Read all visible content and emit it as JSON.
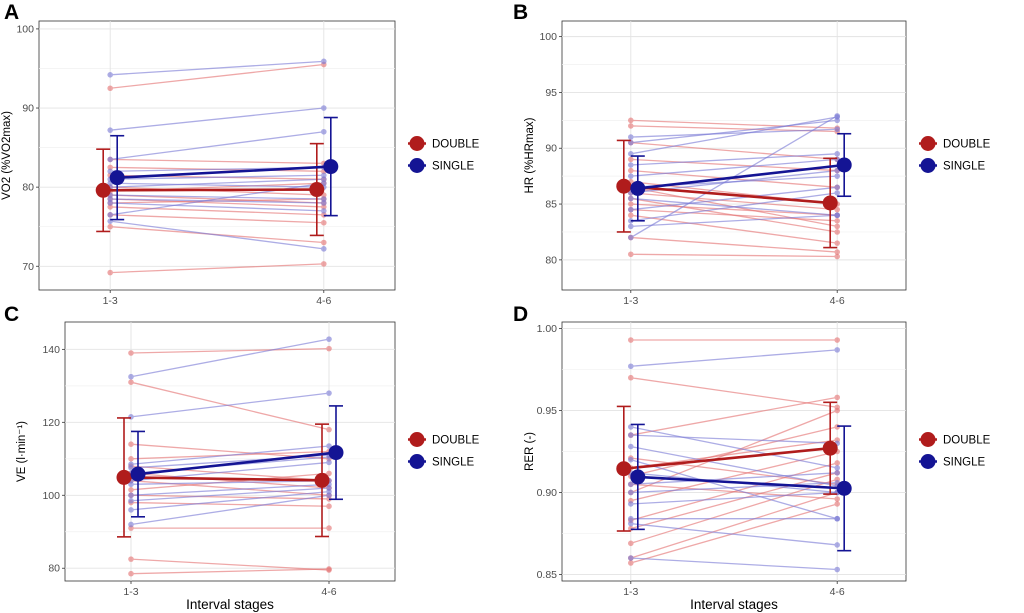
{
  "colors": {
    "DOUBLE": "#b01c1c",
    "SINGLE": "#141494",
    "DOUBLE_light": "#e57373",
    "SINGLE_light": "#7b7bd6"
  },
  "chart_data": [
    {
      "type": "line",
      "panel": "A",
      "ylabel": "VO2 (%VO2max)",
      "xlabel": "",
      "categories": [
        "1-3",
        "4-6"
      ],
      "ylim": [
        67,
        101
      ],
      "yticks": [
        70,
        80,
        90,
        100
      ],
      "legend": [
        "DOUBLE",
        "SINGLE"
      ],
      "means": [
        {
          "name": "DOUBLE",
          "values": [
            79.6,
            79.7
          ],
          "err": [
            5.2,
            5.8
          ]
        },
        {
          "name": "SINGLE",
          "values": [
            81.2,
            82.6
          ],
          "err": [
            5.3,
            6.2
          ]
        }
      ],
      "individuals": [
        {
          "name": "DOUBLE",
          "pairs": [
            [
              92.5,
              95.5
            ],
            [
              83.5,
              83.0
            ],
            [
              82.5,
              82.0
            ],
            [
              81.5,
              81.0
            ],
            [
              80.0,
              79.0
            ],
            [
              79.5,
              80.5
            ],
            [
              79.0,
              78.0
            ],
            [
              78.5,
              77.5
            ],
            [
              78.0,
              78.5
            ],
            [
              77.5,
              76.5
            ],
            [
              76.5,
              75.5
            ],
            [
              75.0,
              73.0
            ],
            [
              69.2,
              70.3
            ]
          ]
        },
        {
          "name": "SINGLE",
          "pairs": [
            [
              94.2,
              95.9
            ],
            [
              87.2,
              90.0
            ],
            [
              83.5,
              87.0
            ],
            [
              82.0,
              82.5
            ],
            [
              81.0,
              81.5
            ],
            [
              80.5,
              80.0
            ],
            [
              80.0,
              81.0
            ],
            [
              79.0,
              78.5
            ],
            [
              78.5,
              78.0
            ],
            [
              78.0,
              77.0
            ],
            [
              76.5,
              80.5
            ],
            [
              75.7,
              72.2
            ]
          ]
        }
      ]
    },
    {
      "type": "line",
      "panel": "B",
      "ylabel": "HR (%HRmax)",
      "xlabel": "",
      "categories": [
        "1-3",
        "4-6"
      ],
      "ylim": [
        77.3,
        101.4
      ],
      "yticks": [
        80,
        85,
        90,
        95,
        100
      ],
      "legend": [
        "DOUBLE",
        "SINGLE"
      ],
      "means": [
        {
          "name": "DOUBLE",
          "values": [
            86.6,
            85.1
          ],
          "err": [
            4.1,
            4.0
          ]
        },
        {
          "name": "SINGLE",
          "values": [
            86.4,
            88.5
          ],
          "err": [
            2.9,
            2.8
          ]
        }
      ],
      "individuals": [
        {
          "name": "DOUBLE",
          "pairs": [
            [
              92.5,
              91.8
            ],
            [
              92.0,
              91.5
            ],
            [
              90.5,
              89.0
            ],
            [
              89.0,
              88.0
            ],
            [
              88.0,
              86.5
            ],
            [
              87.0,
              85.0
            ],
            [
              86.5,
              83.0
            ],
            [
              86.0,
              84.5
            ],
            [
              85.5,
              82.5
            ],
            [
              85.0,
              84.0
            ],
            [
              84.5,
              83.5
            ],
            [
              84.0,
              81.5
            ],
            [
              82.0,
              80.7
            ],
            [
              80.5,
              80.3
            ]
          ]
        },
        {
          "name": "SINGLE",
          "pairs": [
            [
              91.0,
              91.7
            ],
            [
              90.5,
              92.5
            ],
            [
              89.5,
              92.8
            ],
            [
              88.5,
              89.5
            ],
            [
              87.5,
              89.0
            ],
            [
              86.5,
              87.5
            ],
            [
              86.0,
              88.0
            ],
            [
              85.5,
              84.0
            ],
            [
              84.5,
              86.5
            ],
            [
              83.5,
              86.0
            ],
            [
              83.0,
              84.0
            ],
            [
              82.0,
              92.9
            ]
          ]
        }
      ]
    },
    {
      "type": "line",
      "panel": "C",
      "ylabel": "VE (l·min⁻¹)",
      "xlabel": "Interval stages",
      "categories": [
        "1-3",
        "4-6"
      ],
      "ylim": [
        76.5,
        147.5
      ],
      "yticks": [
        80,
        100,
        120,
        140
      ],
      "legend": [
        "DOUBLE",
        "SINGLE"
      ],
      "means": [
        {
          "name": "DOUBLE",
          "values": [
            104.9,
            104.1
          ],
          "err": [
            16.3,
            15.4
          ]
        },
        {
          "name": "SINGLE",
          "values": [
            105.8,
            111.7
          ],
          "err": [
            11.7,
            12.8
          ]
        }
      ],
      "individuals": [
        {
          "name": "DOUBLE",
          "pairs": [
            [
              139.0,
              140.2
            ],
            [
              131.0,
              118.0
            ],
            [
              114.0,
              110.0
            ],
            [
              110.0,
              112.0
            ],
            [
              108.0,
              104.0
            ],
            [
              106.0,
              102.0
            ],
            [
              104.0,
              100.0
            ],
            [
              101.5,
              106.0
            ],
            [
              100.0,
              99.0
            ],
            [
              98.0,
              97.0
            ],
            [
              91.0,
              91.0
            ],
            [
              82.5,
              79.5
            ],
            [
              78.5,
              79.8
            ]
          ]
        },
        {
          "name": "SINGLE",
          "pairs": [
            [
              132.5,
              142.8
            ],
            [
              121.5,
              128.0
            ],
            [
              108.5,
              113.5
            ],
            [
              107.5,
              111.0
            ],
            [
              106.0,
              110.5
            ],
            [
              104.0,
              109.0
            ],
            [
              103.0,
              104.0
            ],
            [
              100.0,
              103.0
            ],
            [
              98.5,
              102.0
            ],
            [
              96.0,
              101.0
            ],
            [
              92.0,
              100.0
            ]
          ]
        }
      ]
    },
    {
      "type": "line",
      "panel": "D",
      "ylabel": "RER (-)",
      "xlabel": "Interval stages",
      "categories": [
        "1-3",
        "4-6"
      ],
      "ylim": [
        0.846,
        1.004
      ],
      "yticks": [
        0.85,
        0.9,
        0.95,
        1.0
      ],
      "ytick_labels": [
        "0.85",
        "0.90",
        "0.95",
        "1.00"
      ],
      "legend": [
        "DOUBLE",
        "SINGLE"
      ],
      "means": [
        {
          "name": "DOUBLE",
          "values": [
            0.9145,
            0.927
          ],
          "err": [
            0.038,
            0.028
          ]
        },
        {
          "name": "SINGLE",
          "values": [
            0.9095,
            0.9025
          ],
          "err": [
            0.032,
            0.038
          ]
        }
      ],
      "individuals": [
        {
          "name": "DOUBLE",
          "pairs": [
            [
              0.993,
              0.993
            ],
            [
              0.97,
              0.952
            ],
            [
              0.935,
              0.958
            ],
            [
              0.921,
              0.905
            ],
            [
              0.915,
              0.932
            ],
            [
              0.91,
              0.94
            ],
            [
              0.905,
              0.896
            ],
            [
              0.9,
              0.95
            ],
            [
              0.895,
              0.925
            ],
            [
              0.883,
              0.918
            ],
            [
              0.878,
              0.912
            ],
            [
              0.869,
              0.908
            ],
            [
              0.86,
              0.9
            ],
            [
              0.857,
              0.893
            ]
          ]
        },
        {
          "name": "SINGLE",
          "pairs": [
            [
              0.977,
              0.987
            ],
            [
              0.94,
              0.915
            ],
            [
              0.935,
              0.93
            ],
            [
              0.928,
              0.904
            ],
            [
              0.92,
              0.884
            ],
            [
              0.912,
              0.9
            ],
            [
              0.905,
              0.912
            ],
            [
              0.9,
              0.906
            ],
            [
              0.893,
              0.9
            ],
            [
              0.884,
              0.884
            ],
            [
              0.881,
              0.868
            ],
            [
              0.86,
              0.853
            ]
          ]
        }
      ]
    }
  ]
}
